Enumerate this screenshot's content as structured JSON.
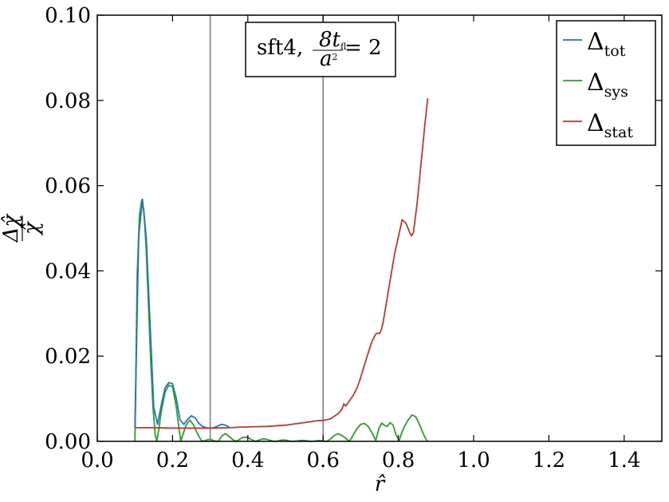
{
  "chart_data": {
    "type": "line",
    "xlabel": "r̂",
    "ylabel_parts": {
      "num": "Δχ̂",
      "den": "χ̂"
    },
    "xlim": [
      0.0,
      1.5
    ],
    "ylim": [
      0.0,
      0.1
    ],
    "xticks": [
      "0.0",
      "0.2",
      "0.4",
      "0.6",
      "0.8",
      "1.0",
      "1.2",
      "1.4"
    ],
    "xtick_values": [
      0.0,
      0.2,
      0.4,
      0.6,
      0.8,
      1.0,
      1.2,
      1.4
    ],
    "yticks": [
      "0.00",
      "0.02",
      "0.04",
      "0.06",
      "0.08",
      "0.10"
    ],
    "ytick_values": [
      0.0,
      0.02,
      0.04,
      0.06,
      0.08,
      0.1
    ],
    "vlines": [
      0.3,
      0.6
    ],
    "annotation": {
      "prefix": "sft4, ",
      "frac_num": "8t",
      "frac_num_sub": "fl",
      "frac_den": "a",
      "frac_den_sup": "2",
      "suffix": " = 2"
    },
    "legend_position": "upper right",
    "series": [
      {
        "name": "tot",
        "label_base": "Δ",
        "color": "#1f77b4",
        "x": [
          0.1,
          0.11,
          0.12,
          0.13,
          0.14,
          0.15,
          0.16,
          0.17,
          0.18,
          0.19,
          0.2,
          0.21,
          0.22,
          0.23,
          0.24,
          0.25,
          0.26,
          0.27,
          0.28,
          0.29,
          0.3,
          0.31,
          0.32,
          0.33,
          0.34,
          0.35
        ],
        "y": [
          0.0032,
          0.048,
          0.0568,
          0.048,
          0.028,
          0.008,
          0.004,
          0.0085,
          0.0125,
          0.0138,
          0.0135,
          0.01,
          0.005,
          0.004,
          0.0052,
          0.006,
          0.0055,
          0.0042,
          0.0035,
          0.0032,
          0.0031,
          0.0032,
          0.0036,
          0.004,
          0.0038,
          0.0034
        ]
      },
      {
        "name": "sys",
        "label_base": "Δ",
        "color": "#2ca02c",
        "x": [
          0.1,
          0.102,
          0.106,
          0.112,
          0.118,
          0.124,
          0.13,
          0.136,
          0.142,
          0.148,
          0.154,
          0.158,
          0.162,
          0.17,
          0.18,
          0.19,
          0.2,
          0.21,
          0.217,
          0.222,
          0.226,
          0.236,
          0.246,
          0.256,
          0.266,
          0.276,
          0.282,
          0.289,
          0.3,
          0.312,
          0.322,
          0.33,
          0.34,
          0.35,
          0.36,
          0.37,
          0.38,
          0.39,
          0.4,
          0.41,
          0.42,
          0.43,
          0.44,
          0.45,
          0.46,
          0.47,
          0.48,
          0.49,
          0.5,
          0.51,
          0.52,
          0.53,
          0.54,
          0.55,
          0.56,
          0.57,
          0.58,
          0.59,
          0.6,
          0.61,
          0.62,
          0.63,
          0.64,
          0.65,
          0.66,
          0.67,
          0.68,
          0.69,
          0.7,
          0.71,
          0.72,
          0.73,
          0.74,
          0.748,
          0.756,
          0.762,
          0.77,
          0.778,
          0.786,
          0.794,
          0.802,
          0.808,
          0.816,
          0.826,
          0.836,
          0.846,
          0.856,
          0.866,
          0.872,
          0.878
        ],
        "y": [
          0.0,
          0.012,
          0.039,
          0.053,
          0.0566,
          0.054,
          0.045,
          0.032,
          0.019,
          0.008,
          0.0015,
          0.0,
          0.002,
          0.007,
          0.0115,
          0.0132,
          0.0128,
          0.008,
          0.003,
          0.0,
          0.0012,
          0.0038,
          0.005,
          0.0038,
          0.0018,
          0.0003,
          0.0,
          0.0003,
          0.0005,
          0.0001,
          0.0,
          0.0012,
          0.0018,
          0.0012,
          0.0004,
          0.0,
          0.0006,
          0.001,
          0.0009,
          0.0004,
          0.0,
          0.0003,
          0.0006,
          0.0005,
          0.0002,
          0.0,
          0.0001,
          0.0003,
          0.0003,
          0.0001,
          0.0,
          0.0001,
          0.0002,
          0.0002,
          0.0001,
          0.0,
          0.0001,
          0.0002,
          0.0001,
          0.0,
          0.0006,
          0.0014,
          0.0018,
          0.0014,
          0.0007,
          0.0,
          0.0015,
          0.003,
          0.004,
          0.0042,
          0.0035,
          0.002,
          0.0002,
          0.003,
          0.0043,
          0.0038,
          0.0035,
          0.0044,
          0.0038,
          0.0015,
          0.0001,
          0.0018,
          0.0035,
          0.005,
          0.0062,
          0.0058,
          0.004,
          0.0018,
          0.0007,
          0.0
        ]
      },
      {
        "name": "stat",
        "label_base": "Δ",
        "color": "#c0392b",
        "x": [
          0.1,
          0.15,
          0.2,
          0.25,
          0.3,
          0.35,
          0.4,
          0.45,
          0.5,
          0.55,
          0.58,
          0.6,
          0.62,
          0.64,
          0.65,
          0.655,
          0.66,
          0.67,
          0.68,
          0.69,
          0.7,
          0.71,
          0.72,
          0.73,
          0.74,
          0.745,
          0.75,
          0.755,
          0.76,
          0.77,
          0.78,
          0.79,
          0.8,
          0.81,
          0.82,
          0.83,
          0.835,
          0.84,
          0.85,
          0.86,
          0.87,
          0.878
        ],
        "y": [
          0.0032,
          0.0032,
          0.0031,
          0.0031,
          0.0031,
          0.0032,
          0.0034,
          0.0035,
          0.0038,
          0.0044,
          0.0048,
          0.0049,
          0.0053,
          0.0065,
          0.0075,
          0.0088,
          0.0083,
          0.0095,
          0.0108,
          0.0125,
          0.015,
          0.018,
          0.0208,
          0.0235,
          0.0252,
          0.0254,
          0.0253,
          0.0262,
          0.0282,
          0.0335,
          0.0388,
          0.044,
          0.048,
          0.052,
          0.0512,
          0.049,
          0.0482,
          0.049,
          0.056,
          0.065,
          0.074,
          0.0805
        ]
      }
    ]
  }
}
